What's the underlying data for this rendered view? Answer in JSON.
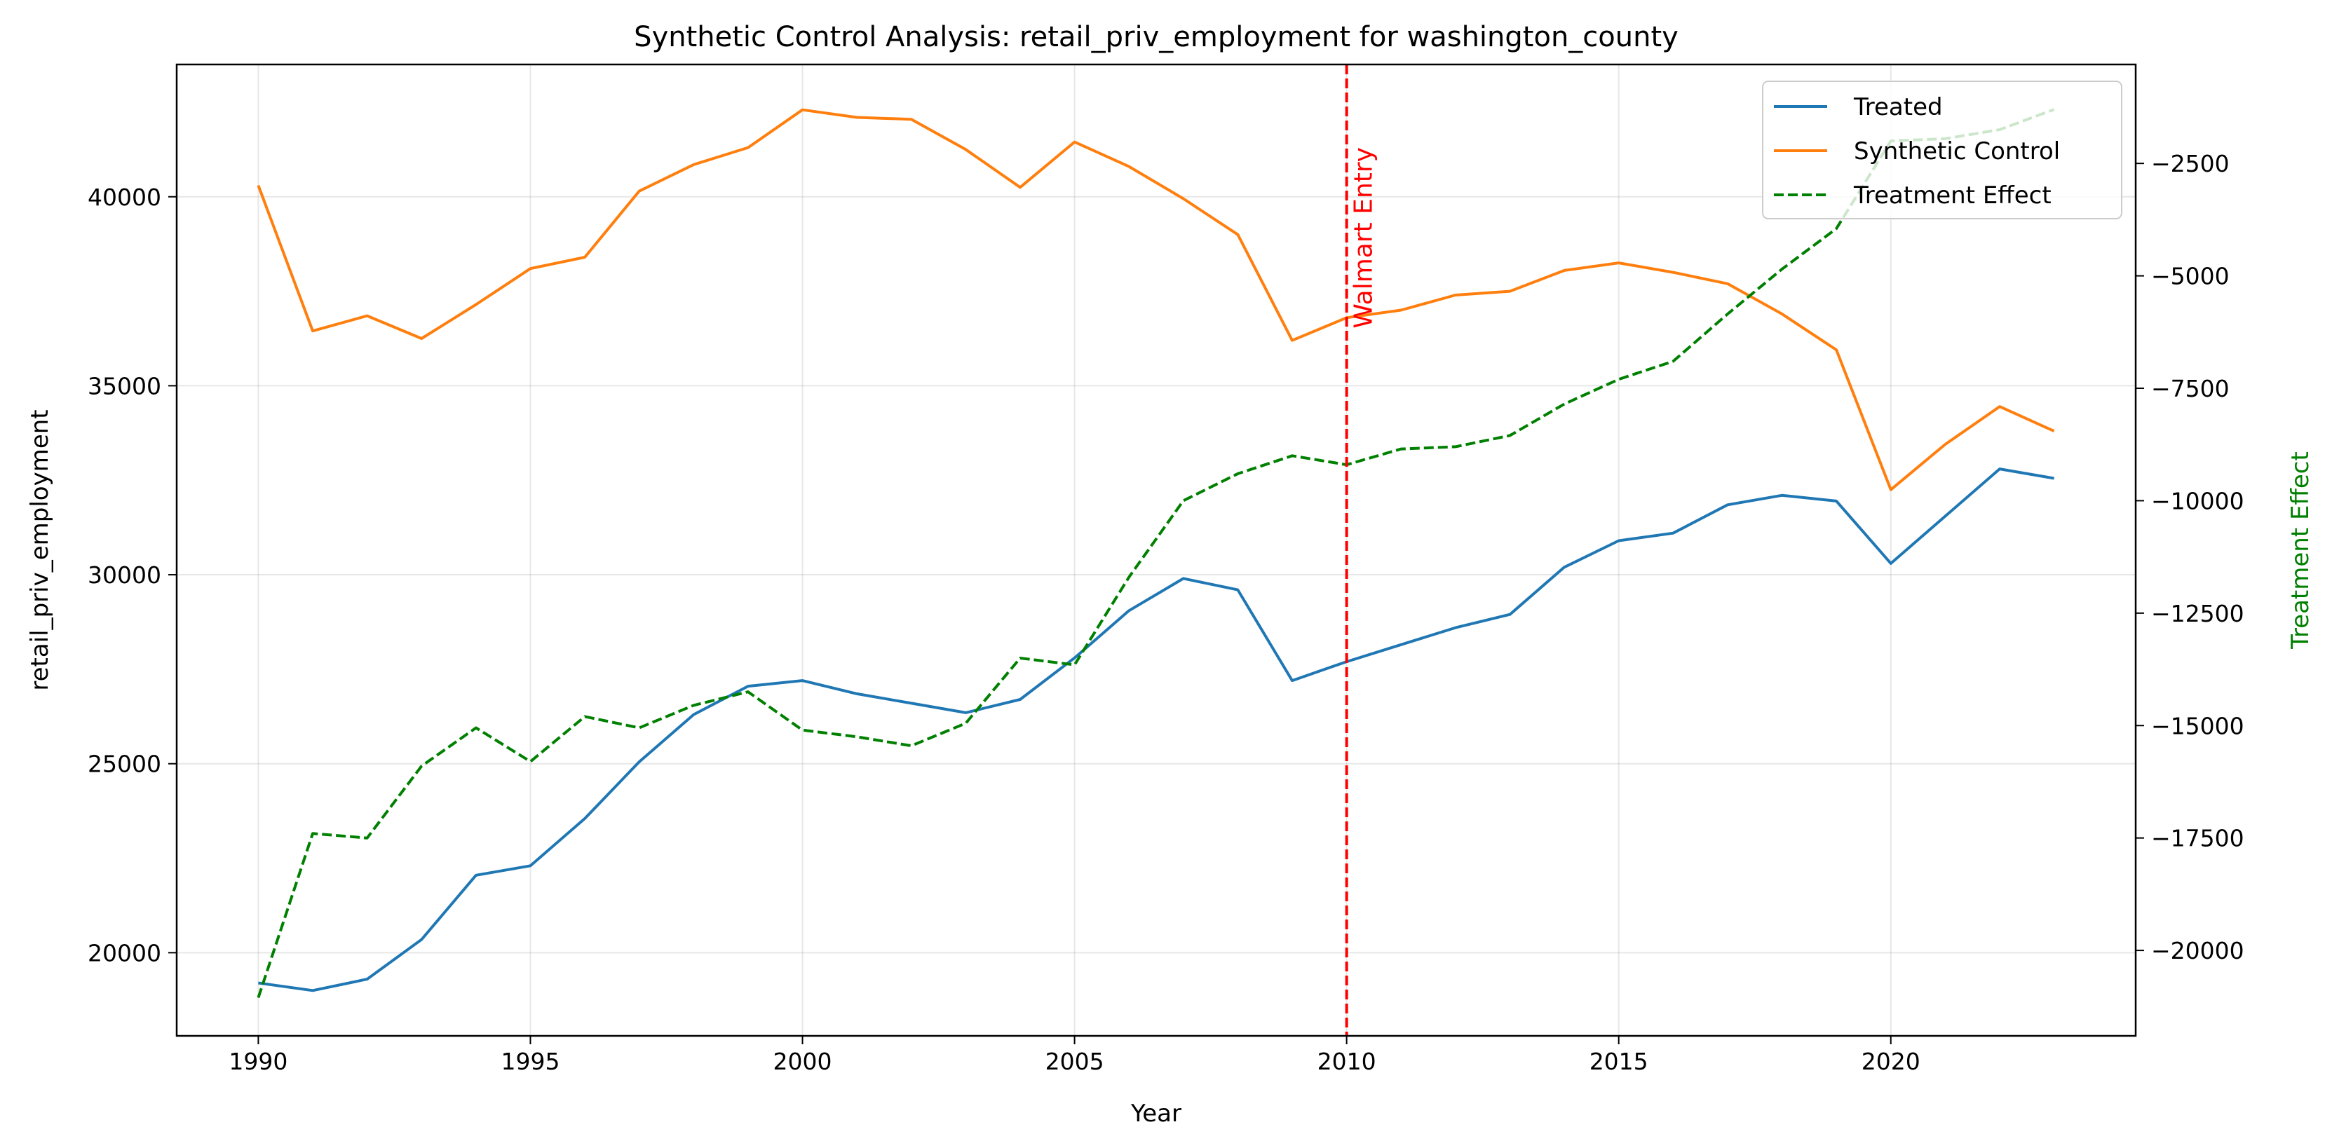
{
  "chart_data": {
    "type": "line",
    "title": "Synthetic Control Analysis: retail_priv_employment for washington_county",
    "xlabel": "Year",
    "ylabel": "retail_priv_employment",
    "y2label": "Treatment Effect",
    "xlim": [
      1988.5,
      2024.5
    ],
    "ylim": [
      17800,
      43500
    ],
    "y2lim": [
      -21900,
      -300
    ],
    "x_ticks": [
      1990,
      1995,
      2000,
      2005,
      2010,
      2015,
      2020
    ],
    "y_ticks": [
      20000,
      25000,
      30000,
      35000,
      40000
    ],
    "y2_ticks": [
      -20000,
      -17500,
      -15000,
      -12500,
      -10000,
      -7500,
      -5000,
      -2500
    ],
    "grid": true,
    "legend_position": "upper right",
    "x": [
      1990,
      1991,
      1992,
      1993,
      1994,
      1995,
      1996,
      1997,
      1998,
      1999,
      2000,
      2001,
      2002,
      2003,
      2004,
      2005,
      2006,
      2007,
      2008,
      2009,
      2010,
      2011,
      2012,
      2013,
      2014,
      2015,
      2016,
      2017,
      2018,
      2019,
      2020,
      2021,
      2022,
      2023
    ],
    "series": [
      {
        "name": "Treated",
        "axis": "left",
        "color": "#1f77b4",
        "dash": "solid",
        "values": [
          19200,
          19000,
          19300,
          20350,
          22050,
          22300,
          23550,
          25050,
          26300,
          27050,
          27200,
          26850,
          26600,
          26350,
          26700,
          27800,
          29050,
          29900,
          29600,
          27200,
          27700,
          28150,
          28600,
          28950,
          30200,
          30900,
          31100,
          31850,
          32100,
          31950,
          30300,
          31550,
          32800,
          32550
        ]
      },
      {
        "name": "Synthetic Control",
        "axis": "left",
        "color": "#ff7f0e",
        "dash": "solid",
        "values": [
          40300,
          36450,
          36850,
          36250,
          37150,
          38100,
          38400,
          40150,
          40850,
          41300,
          42300,
          42100,
          42050,
          41250,
          40250,
          41450,
          40800,
          39950,
          39000,
          36200,
          36800,
          37000,
          37400,
          37500,
          38050,
          38250,
          38000,
          37700,
          36900,
          35950,
          32250,
          33450,
          34450,
          33800
        ]
      },
      {
        "name": "Treatment Effect",
        "axis": "right",
        "color": "#008000",
        "dash": "dashed",
        "values": [
          -21050,
          -17400,
          -17500,
          -15900,
          -15050,
          -15800,
          -14800,
          -15050,
          -14550,
          -14250,
          -15100,
          -15250,
          -15450,
          -14950,
          -13500,
          -13650,
          -11700,
          -10000,
          -9400,
          -9000,
          -9200,
          -8850,
          -8800,
          -8550,
          -7850,
          -7300,
          -6900,
          -5850,
          -4850,
          -3950,
          -2000,
          -1950,
          -1750,
          -1300
        ]
      }
    ],
    "annotations": [
      {
        "type": "vline",
        "x": 2010,
        "color": "#ff0000",
        "dash": "dashed",
        "label": "Walmart Entry"
      }
    ]
  }
}
